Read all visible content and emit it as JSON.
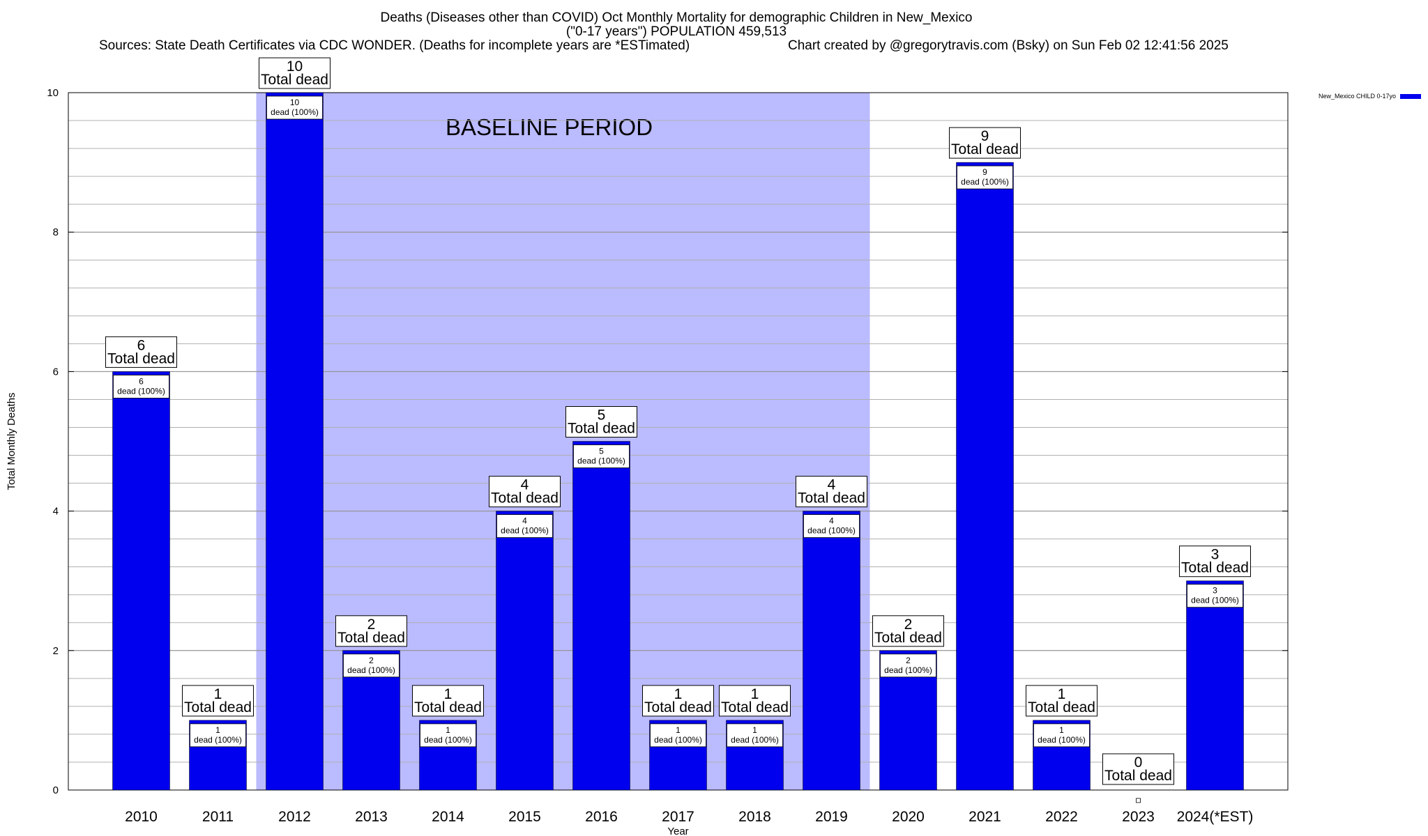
{
  "chart_data": {
    "type": "bar",
    "title_lines": [
      "Deaths (Diseases other than COVID) Oct Monthly Mortality for demographic Children in New_Mexico",
      "(\"0-17 years\") POPULATION 459,513"
    ],
    "subtitle_left": "Sources: State Death Certificates via CDC WONDER. (Deaths for incomplete years are *ESTimated)",
    "subtitle_right": "Chart created by @gregorytravis.com (Bsky) on Sun Feb 02 12:41:56 2025",
    "xlabel": "Year",
    "ylabel": "Total Monthly Deaths",
    "ylim": [
      0,
      10
    ],
    "y_major_ticks": [
      0,
      2,
      4,
      6,
      8,
      10
    ],
    "y_minor_step": 0.4,
    "categories": [
      "2010",
      "2011",
      "2012",
      "2013",
      "2014",
      "2015",
      "2016",
      "2017",
      "2018",
      "2019",
      "2020",
      "2021",
      "2022",
      "2023",
      "2024(*EST)"
    ],
    "series": [
      {
        "name": "New_Mexico CHILD 0-17yo",
        "values": [
          6,
          1,
          10,
          2,
          1,
          4,
          5,
          1,
          1,
          4,
          2,
          9,
          1,
          0,
          3
        ],
        "color": "#0000ee"
      }
    ],
    "total_label_text": "Total dead",
    "inner_label_text": "dead (100%)",
    "baseline": {
      "label": "BASELINE PERIOD",
      "start_category": "2012",
      "end_category": "2019",
      "color": "#bbbbff"
    },
    "grid": true,
    "legend_position": "top-right"
  }
}
